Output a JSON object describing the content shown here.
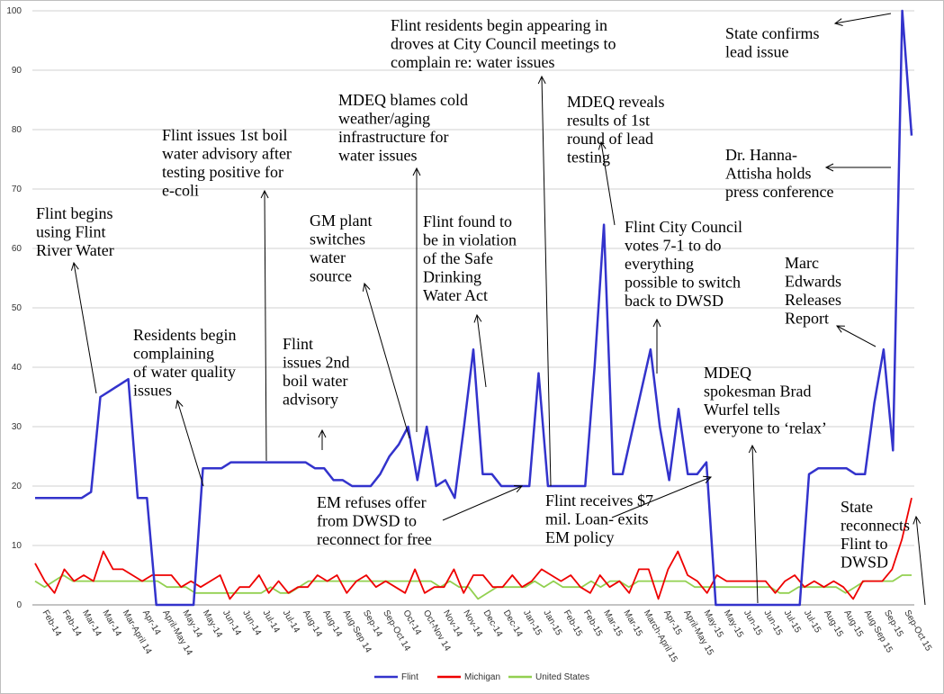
{
  "chart_data": {
    "type": "line",
    "ylim": [
      0,
      100
    ],
    "yticks": [
      "0",
      "10",
      "20",
      "30",
      "40",
      "50",
      "60",
      "70",
      "80",
      "90",
      "100"
    ],
    "grid": true,
    "legend_position": "bottom",
    "x_labels": [
      "Feb-14",
      "Feb-14",
      "Mar-14",
      "Mar-14",
      "Mar-April 14",
      "Apr-14",
      "April-May 14",
      "May-14",
      "May-14",
      "Jun-14",
      "Jun-14",
      "Jul-14",
      "Jul-14",
      "Aug-14",
      "Aug-14",
      "Aug-Sep 14",
      "Sep-14",
      "Sep-Oct 14",
      "Oct-14",
      "Oct-Nov 14",
      "Nov-14",
      "Nov-14",
      "Dec-14",
      "Dec-14",
      "Jan-15",
      "Jan-15",
      "Feb-15",
      "Feb-15",
      "Mar-15",
      "Mar-15",
      "March-April 15",
      "Apr-15",
      "April-May 15",
      "May-15",
      "May-15",
      "Jun-15",
      "Jun-15",
      "Jul-15",
      "Jul-15",
      "Aug-15",
      "Aug-15",
      "Aug-Sep 15",
      "Sep-15",
      "Sep-Oct 15"
    ],
    "series": [
      {
        "name": "Flint",
        "color": "#3333cc",
        "values": [
          18,
          18,
          18,
          18,
          18,
          18,
          19,
          35,
          36,
          37,
          38,
          18,
          18,
          0,
          0,
          0,
          0,
          0,
          23,
          23,
          23,
          24,
          24,
          24,
          24,
          24,
          24,
          24,
          24,
          24,
          23,
          23,
          21,
          21,
          20,
          20,
          20,
          22,
          25,
          27,
          30,
          21,
          30,
          20,
          21,
          18,
          30,
          43,
          22,
          22,
          20,
          20,
          20,
          20,
          39,
          20,
          20,
          20,
          20,
          20,
          40,
          64,
          22,
          22,
          29,
          36,
          43,
          30,
          21,
          33,
          22,
          22,
          24,
          0,
          0,
          0,
          0,
          0,
          0,
          0,
          0,
          0,
          0,
          22,
          23,
          23,
          23,
          23,
          22,
          22,
          34,
          43,
          26,
          100,
          79
        ]
      },
      {
        "name": "Michigan",
        "color": "#ee0000",
        "values": [
          7,
          4,
          2,
          6,
          4,
          5,
          4,
          9,
          6,
          6,
          5,
          4,
          5,
          5,
          5,
          3,
          4,
          3,
          4,
          5,
          1,
          3,
          3,
          5,
          2,
          4,
          2,
          3,
          3,
          5,
          4,
          5,
          2,
          4,
          5,
          3,
          4,
          3,
          2,
          6,
          2,
          3,
          3,
          6,
          2,
          5,
          5,
          3,
          3,
          5,
          3,
          4,
          6,
          5,
          4,
          5,
          3,
          2,
          5,
          3,
          4,
          2,
          6,
          6,
          1,
          6,
          9,
          5,
          4,
          2,
          5,
          4,
          4,
          4,
          4,
          4,
          2,
          4,
          5,
          3,
          4,
          3,
          4,
          3,
          1,
          4,
          4,
          4,
          6,
          11,
          18
        ]
      },
      {
        "name": "United States",
        "color": "#92d050",
        "values": [
          4,
          3,
          4,
          5,
          4,
          4,
          4,
          4,
          4,
          4,
          4,
          4,
          4,
          4,
          3,
          3,
          3,
          2,
          2,
          2,
          2,
          2,
          2,
          2,
          2,
          3,
          2,
          2,
          3,
          4,
          4,
          4,
          4,
          4,
          4,
          4,
          4,
          4,
          4,
          4,
          4,
          4,
          4,
          3,
          4,
          3,
          3,
          1,
          2,
          3,
          3,
          3,
          3,
          4,
          3,
          4,
          3,
          3,
          3,
          4,
          3,
          4,
          4,
          3,
          4,
          4,
          4,
          4,
          4,
          4,
          3,
          3,
          3,
          3,
          3,
          3,
          3,
          3,
          3,
          2,
          2,
          3,
          3,
          3,
          3,
          3,
          2,
          3,
          4,
          4,
          4,
          4,
          5,
          5
        ]
      }
    ],
    "annotations": [
      {
        "id": "flint-begins",
        "lines": [
          "Flint begins",
          "using Flint",
          "River Water"
        ]
      },
      {
        "id": "residents-complain",
        "lines": [
          "Residents begin",
          "complaining",
          "of water quality",
          "issues"
        ]
      },
      {
        "id": "boil1",
        "lines": [
          "Flint issues 1st boil",
          "water advisory after",
          "testing positive for",
          "e-coli"
        ]
      },
      {
        "id": "boil2",
        "lines": [
          "Flint",
          "issues 2nd",
          "boil water",
          "advisory"
        ]
      },
      {
        "id": "gm",
        "lines": [
          "GM plant",
          "switches",
          "water",
          "source"
        ]
      },
      {
        "id": "mdeq-blames",
        "lines": [
          "MDEQ blames cold",
          "weather/aging",
          "infrastructure for",
          "water issues"
        ]
      },
      {
        "id": "violation",
        "lines": [
          "Flint found to",
          "be in violation",
          "of the Safe",
          "Drinking",
          "Water Act"
        ]
      },
      {
        "id": "droves",
        "lines": [
          "Flint residents begin appearing in",
          "droves at City Council meetings to",
          "complain re: water issues"
        ]
      },
      {
        "id": "mdeq-reveals",
        "lines": [
          "MDEQ reveals",
          "results of 1st",
          "round of lead",
          "testing"
        ]
      },
      {
        "id": "council",
        "lines": [
          "Flint City Council",
          "votes 7-1 to do",
          "everything",
          "possible to switch",
          "back to DWSD"
        ]
      },
      {
        "id": "state-confirms",
        "lines": [
          "State confirms",
          "lead issue"
        ]
      },
      {
        "id": "hanna",
        "lines": [
          "Dr. Hanna-",
          "Attisha holds",
          "press conference"
        ]
      },
      {
        "id": "edwards",
        "lines": [
          "Marc",
          "Edwards",
          "Releases",
          "Report"
        ]
      },
      {
        "id": "wurfel",
        "lines": [
          "MDEQ",
          "spokesman Brad",
          "Wurfel tells",
          "everyone to ‘relax’"
        ]
      },
      {
        "id": "em-refuses",
        "lines": [
          "EM refuses offer",
          "from DWSD to",
          "reconnect for free"
        ]
      },
      {
        "id": "loan",
        "lines": [
          "Flint receives $7",
          "mil. Loan- exits",
          "EM policy"
        ]
      },
      {
        "id": "reconnects",
        "lines": [
          "State",
          "reconnects",
          "Flint to",
          "DWSD"
        ]
      }
    ]
  }
}
